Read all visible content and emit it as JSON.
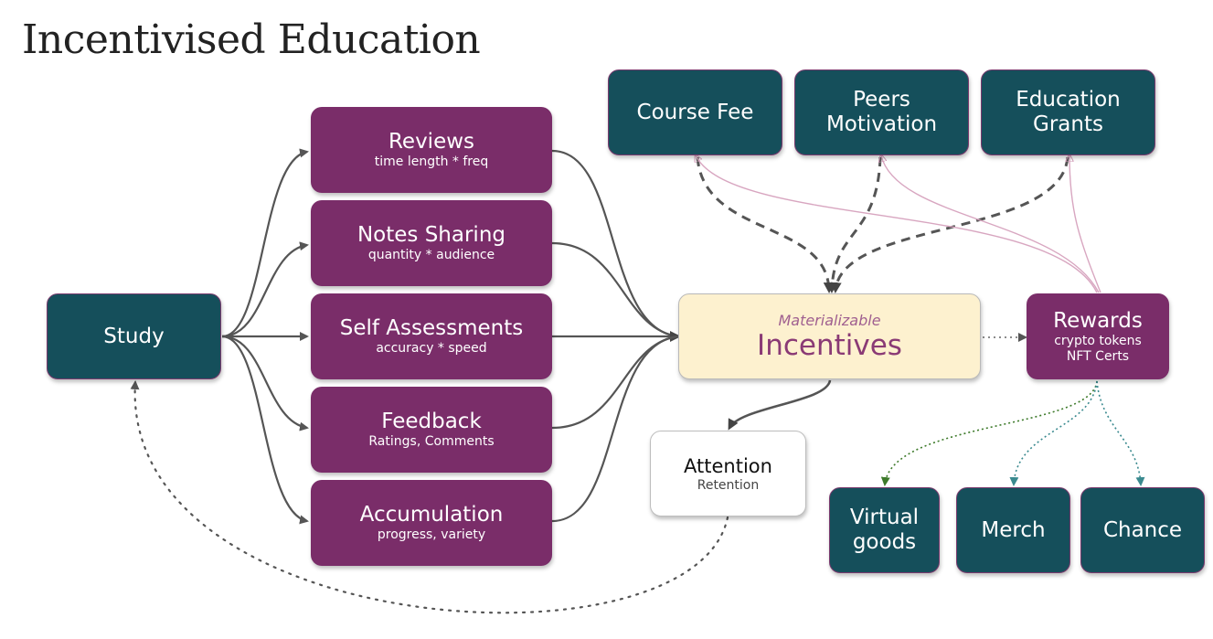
{
  "title": "Incentivised Education",
  "nodes": {
    "study": {
      "label": "Study"
    },
    "reviews": {
      "label": "Reviews",
      "sub": "time length * freq"
    },
    "notes_sharing": {
      "label": "Notes Sharing",
      "sub": "quantity * audience"
    },
    "self_assessments": {
      "label": "Self Assessments",
      "sub": "accuracy * speed"
    },
    "feedback": {
      "label": "Feedback",
      "sub": "Ratings, Comments"
    },
    "accumulation": {
      "label": "Accumulation",
      "sub": "progress, variety"
    },
    "incentives": {
      "label": "Incentives",
      "sub": "Materializable"
    },
    "attention": {
      "label": "Attention",
      "sub": "Retention"
    },
    "course_fee": {
      "label": "Course Fee"
    },
    "peers_motivation": {
      "line1": "Peers",
      "line2": "Motivation"
    },
    "education_grants": {
      "line1": "Education",
      "line2": "Grants"
    },
    "rewards": {
      "label": "Rewards",
      "sub1": "crypto tokens",
      "sub2": "NFT Certs"
    },
    "virtual_goods": {
      "line1": "Virtual",
      "line2": "goods"
    },
    "merch": {
      "label": "Merch"
    },
    "chance": {
      "label": "Chance"
    }
  },
  "colors": {
    "teal": "#154f5b",
    "purple": "#7a2d69",
    "cream": "#fdf1cf",
    "gray_edge": "#555555",
    "pink_edge": "#d8a6c0",
    "green_edge": "#3d7a2a",
    "teal_edge": "#3a8a8f"
  }
}
